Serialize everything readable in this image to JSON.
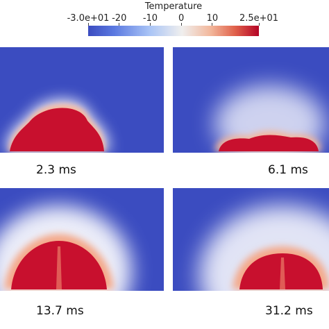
{
  "colorbar": {
    "title": "Temperature",
    "ticks": [
      "-3.0e+01",
      "-20",
      "-10",
      "0",
      "10",
      "2.5e+01"
    ],
    "tick_values": [
      -30,
      -20,
      -10,
      0,
      10,
      25
    ],
    "range": [
      -30,
      25
    ],
    "colors": {
      "low": "#3b4cc0",
      "mid": "#f2f2f2",
      "high": "#b40426"
    }
  },
  "panels": [
    {
      "time_label": "2.3 ms"
    },
    {
      "time_label": "6.1 ms"
    },
    {
      "time_label": "13.7 ms"
    },
    {
      "time_label": "31.2 ms"
    }
  ]
}
